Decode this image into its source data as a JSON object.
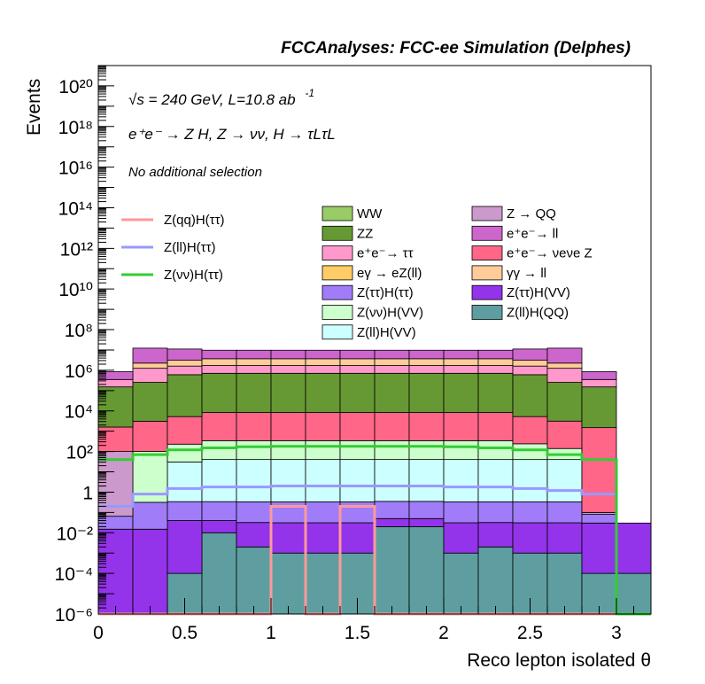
{
  "chart_data": {
    "type": "area",
    "stacked": true,
    "ylog": true,
    "title": "FCCAnalyses: FCC-ee Simulation (Delphes)",
    "energy_label": "√s = 240 GeV, L=10.8 ab",
    "energy_label_exp": "-1",
    "process_label": "e⁺e⁻ → Z H, Z → νν, H → τLτL",
    "selection_label": "No additional selection",
    "xlabel": "Reco lepton isolated θ",
    "ylabel": "Events",
    "xlim": [
      0,
      3.2
    ],
    "ylim": [
      1e-06,
      1e+21
    ],
    "xticks": [
      "0",
      "0.5",
      "1",
      "1.5",
      "2",
      "2.5",
      "3"
    ],
    "yticks": [
      "10⁻⁶",
      "10⁻⁴",
      "10⁻²",
      "1",
      "10²",
      "10⁴",
      "10⁶",
      "10⁸",
      "10¹⁰",
      "10¹²",
      "10¹⁴",
      "10¹⁶",
      "10¹⁸",
      "10²⁰"
    ],
    "bin_edges": [
      0,
      0.2,
      0.4,
      0.6,
      0.8,
      1.0,
      1.2,
      1.4,
      1.6,
      1.8,
      2.0,
      2.2,
      2.4,
      2.6,
      2.8,
      3.0,
      3.2
    ],
    "stack_series": [
      {
        "name": "Z(ll)H(QQ)",
        "color": "#5f9ea0",
        "values": [
          1e-06,
          1e-06,
          0.0001,
          0.01,
          0.002,
          0.001,
          0.001,
          0.001,
          0.02,
          0.02,
          0.001,
          0.002,
          0.001,
          0.001,
          0.0001,
          0.0001
        ]
      },
      {
        "name": "Z(ττ)H(VV)",
        "color": "#9333ea",
        "values": [
          0.015,
          0.015,
          0.04,
          0.03,
          0.03,
          0.03,
          0.03,
          0.03,
          0.03,
          0.03,
          0.03,
          0.03,
          0.03,
          0.03,
          0.03,
          0.03
        ]
      },
      {
        "name": "Z(ττ)H(ττ)",
        "color": "#a07cf8",
        "values": [
          0.05,
          0.3,
          0.3,
          0.3,
          0.3,
          0.3,
          0.3,
          0.3,
          0.3,
          0.3,
          0.3,
          0.3,
          0.3,
          0.3,
          0.05,
          1e-06
        ]
      },
      {
        "name": "Z(ll)H(VV)",
        "color": "#ccffff",
        "values": [
          1e-06,
          1e-06,
          30,
          40,
          40,
          40,
          40,
          40,
          40,
          40,
          40,
          40,
          40,
          40,
          1e-06,
          1e-06
        ]
      },
      {
        "name": "Z(νν)H(VV)",
        "color": "#ccffcc",
        "values": [
          1e-06,
          100,
          200,
          300,
          300,
          300,
          300,
          300,
          300,
          300,
          300,
          300,
          200,
          100,
          1e-06,
          1e-06
        ]
      },
      {
        "name": "Z → QQ",
        "color": "#cc99cc",
        "values": [
          100,
          1e-06,
          1e-06,
          1e-06,
          1e-06,
          1e-06,
          1e-06,
          1e-06,
          1e-06,
          1e-06,
          1e-06,
          1e-06,
          1e-06,
          1e-06,
          0.02,
          1e-06
        ]
      },
      {
        "name": "e⁺e⁻ → νeνe Z",
        "color": "#ff6688",
        "values": [
          1500,
          3000,
          5000,
          8000,
          8000,
          8000,
          8000,
          8000,
          8000,
          8000,
          8000,
          8000,
          5000,
          3000,
          1500,
          1e-06
        ]
      },
      {
        "name": "ZZ",
        "color": "#669933",
        "values": [
          150000,
          250000,
          600000,
          700000,
          700000,
          700000,
          700000,
          700000,
          700000,
          700000,
          700000,
          700000,
          600000,
          250000,
          150000,
          1e-06
        ]
      },
      {
        "name": "e⁺e⁻ → ττ",
        "color": "#ff99cc",
        "values": [
          200000,
          1000000,
          1000000,
          1000000,
          1000000,
          1000000,
          1000000,
          1000000,
          1000000,
          1000000,
          1000000,
          1000000,
          1000000,
          1000000,
          200000,
          1e-06
        ]
      },
      {
        "name": "γγ → ll",
        "color": "#ffcc99",
        "values": [
          0.0002,
          1000000,
          1500000,
          2000000,
          2000000,
          2000000,
          2000000,
          2000000,
          2000000,
          2000000,
          2000000,
          2000000,
          1500000,
          1000000,
          0.0002,
          1e-06
        ]
      },
      {
        "name": "eγ → eZ(ll)",
        "color": "#ffcc66",
        "values": [
          0.0003,
          1e-06,
          1e-06,
          1e-06,
          1e-06,
          1e-06,
          1e-06,
          1e-06,
          1e-06,
          1e-06,
          1e-06,
          1e-06,
          1e-06,
          1e-06,
          0.0003,
          1e-06
        ]
      },
      {
        "name": "WW",
        "color": "#99cc66",
        "values": [
          0.0004,
          1e-06,
          1e-06,
          1e-06,
          1e-06,
          1e-06,
          1e-06,
          1e-06,
          1e-06,
          1e-06,
          1e-06,
          1e-06,
          1e-06,
          1e-06,
          0.0004,
          1e-06
        ]
      },
      {
        "name": "e⁺e⁻ → ll",
        "color": "#cc66cc",
        "values": [
          500000,
          10000000,
          8000000,
          6000000,
          6000000,
          6000000,
          6000000,
          6000000,
          6000000,
          6000000,
          6000000,
          6000000,
          8000000,
          10000000,
          500000,
          1e-06
        ]
      }
    ],
    "line_series": [
      {
        "name": "Z(qq)H(ττ)",
        "color": "#ff9999",
        "values": [
          1e-07,
          1e-07,
          1e-07,
          1e-07,
          1e-07,
          0.2,
          1e-07,
          0.2,
          1e-07,
          1e-07,
          1e-07,
          1e-07,
          1e-07,
          1e-07,
          1e-07,
          1e-07
        ]
      },
      {
        "name": "Z(ll)H(ττ)",
        "color": "#9999ff",
        "values": [
          0.2,
          0.8,
          1.5,
          1.8,
          1.8,
          2.0,
          2.0,
          2.0,
          2.0,
          2.0,
          1.8,
          1.8,
          1.5,
          1.2,
          0.8,
          1e-07
        ]
      },
      {
        "name": "Z(νν)H(ττ)",
        "color": "#33cc33",
        "values": [
          40,
          70,
          120,
          150,
          170,
          180,
          180,
          180,
          180,
          180,
          170,
          150,
          120,
          70,
          40,
          1e-07
        ]
      }
    ],
    "legend_lines": [
      "Z(qq)H(ττ)",
      "Z(ll)H(ττ)",
      "Z(νν)H(ττ)"
    ],
    "legend_col1": [
      "WW",
      "ZZ",
      "e⁺e⁻→ ττ",
      "eγ → eZ(ll)",
      "Z(ττ)H(ττ)",
      "Z(νν)H(VV)",
      "Z(ll)H(VV)"
    ],
    "legend_col2": [
      "Z → QQ",
      "e⁺e⁻→ ll",
      "e⁺e⁻→ νeνe Z",
      "γγ → ll",
      "Z(ττ)H(VV)",
      "Z(ll)H(QQ)"
    ],
    "legend_col1_colors": [
      "#99cc66",
      "#669933",
      "#ff99cc",
      "#ffcc66",
      "#a07cf8",
      "#ccffcc",
      "#ccffff"
    ],
    "legend_col2_colors": [
      "#cc99cc",
      "#cc66cc",
      "#ff6688",
      "#ffcc99",
      "#9333ea",
      "#5f9ea0"
    ]
  }
}
